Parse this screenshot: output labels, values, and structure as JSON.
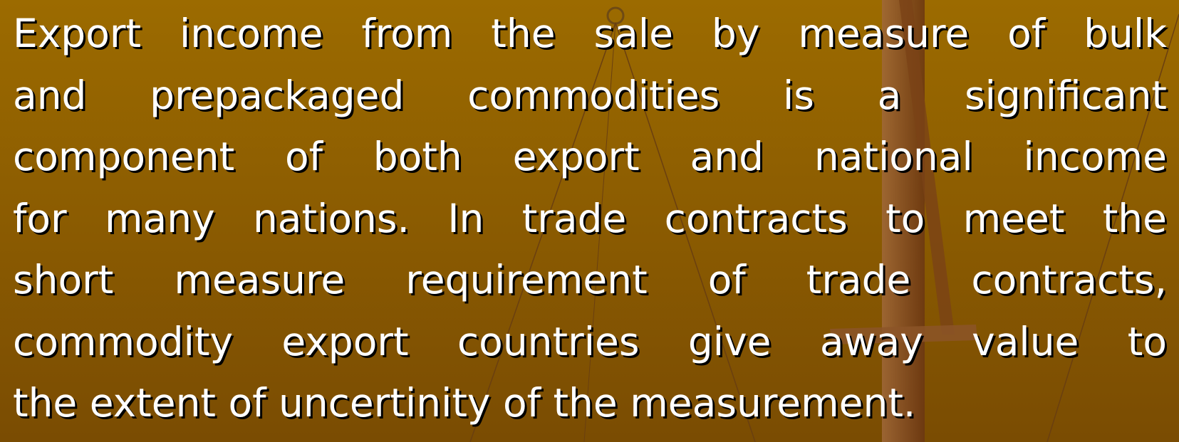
{
  "slide": {
    "lines": [
      "Export income from the sale by measure of bulk",
      "and prepackaged commodities is a significant",
      "component of both export and national income",
      "for many nations. In trade contracts to meet the",
      "short measure requirement of trade contracts,",
      "commodity export countries give away value to",
      "the extent of uncertinity of the measurement."
    ]
  }
}
